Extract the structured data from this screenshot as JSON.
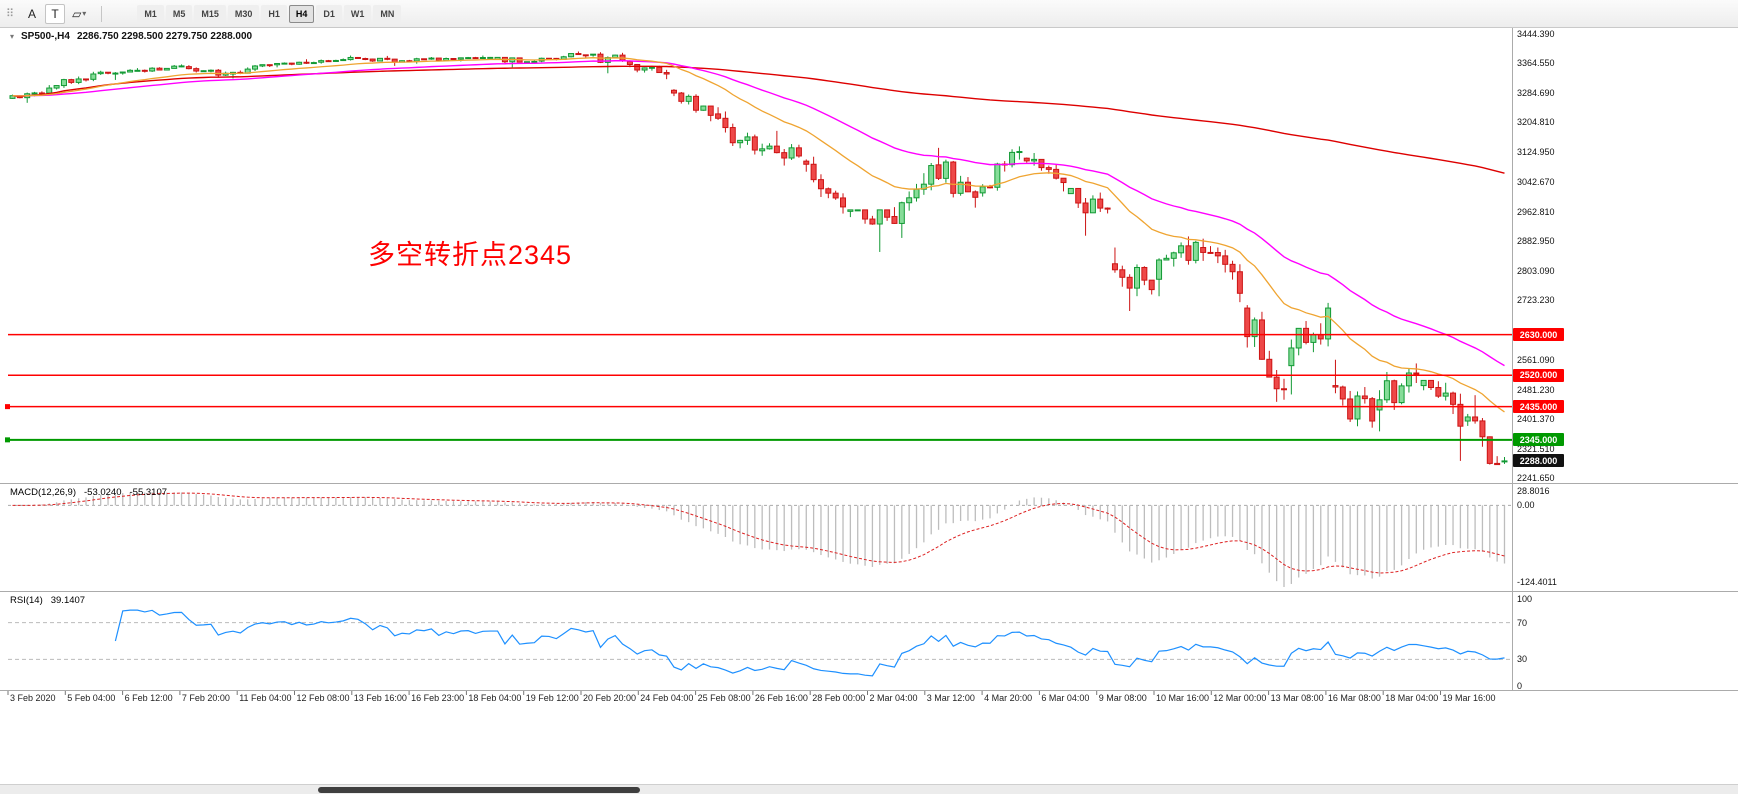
{
  "toolbar": {
    "buttons": [
      {
        "name": "text-annotation",
        "label": "A"
      },
      {
        "name": "text-frame",
        "label": "T"
      },
      {
        "name": "shapes",
        "label": "▱"
      }
    ],
    "timeframes": [
      "M1",
      "M5",
      "M15",
      "M30",
      "H1",
      "H4",
      "D1",
      "W1",
      "MN"
    ],
    "active_timeframe": "H4"
  },
  "chart": {
    "symbol_title": "SP500-,H4",
    "ohlc_text": "2286.750 2298.500 2279.750 2288.000",
    "annotation": "多空转折点2345",
    "annotation_color": "#fe0000",
    "price_axis_ticks": [
      "3444.390",
      "3364.550",
      "3284.690",
      "3204.810",
      "3124.950",
      "3042.670",
      "2962.810",
      "2882.950",
      "2803.090",
      "2723.230",
      "2561.090",
      "2481.230",
      "2401.370",
      "2321.510",
      "2241.650"
    ],
    "levels": [
      {
        "label": "2630.000",
        "value": 2630.0,
        "color": "#ff0000",
        "marker": false
      },
      {
        "label": "2520.000",
        "value": 2520.0,
        "color": "#ff0000",
        "marker": false
      },
      {
        "label": "2435.000",
        "value": 2435.0,
        "color": "#ff0000",
        "marker": true
      },
      {
        "label": "2345.000",
        "value": 2345.0,
        "color": "#009900",
        "marker": true
      }
    ],
    "current_price": {
      "label": "2288.000",
      "value": 2288.0,
      "badge_color": "#111111"
    },
    "colors": {
      "up_line": "#119933",
      "up_fill": "#86dd99",
      "down_line": "#cc1414",
      "down_fill": "#ee4848",
      "ma_fast": "#efA431",
      "ma_mid": "#ff00ff",
      "ma_slow": "#dd0000",
      "macd_hist": "#bdbdbd",
      "macd_signal": "#dd2222",
      "rsi_line": "#1e90ff"
    }
  },
  "chart_data": {
    "type": "candlestick",
    "symbol": "SP500-",
    "period": "H4",
    "bars_per_day": 6,
    "day_format": "[date, open, high, low, close]",
    "days": [
      [
        "3 Feb 2020",
        3270,
        3306,
        3258,
        3298
      ],
      [
        "4 Feb",
        3298,
        3342,
        3294,
        3336
      ],
      [
        "5 Feb",
        3337,
        3352,
        3320,
        3346
      ],
      [
        "6 Feb",
        3346,
        3362,
        3340,
        3358
      ],
      [
        "7 Feb",
        3356,
        3360,
        3328,
        3338
      ],
      [
        "10 Feb",
        3336,
        3362,
        3324,
        3360
      ],
      [
        "11 Feb",
        3361,
        3376,
        3354,
        3367
      ],
      [
        "12 Feb",
        3368,
        3386,
        3364,
        3380
      ],
      [
        "13 Feb",
        3378,
        3385,
        3358,
        3372
      ],
      [
        "14 Feb",
        3372,
        3382,
        3364,
        3378
      ],
      [
        "17 Feb",
        3378,
        3386,
        3370,
        3381
      ],
      [
        "18 Feb",
        3376,
        3381,
        3354,
        3370
      ],
      [
        "19 Feb",
        3371,
        3397,
        3368,
        3390
      ],
      [
        "20 Feb",
        3388,
        3395,
        3338,
        3372
      ],
      [
        "21 Feb",
        3370,
        3373,
        3322,
        3336
      ],
      [
        "24 Feb",
        3292,
        3295,
        3208,
        3224
      ],
      [
        "25 Feb",
        3228,
        3246,
        3118,
        3130
      ],
      [
        "26 Feb",
        3128,
        3182,
        3088,
        3114
      ],
      [
        "27 Feb",
        3100,
        3112,
        2958,
        2976
      ],
      [
        "28 Feb",
        2964,
        2968,
        2854,
        2948
      ],
      [
        "2 Mar",
        2950,
        3095,
        2892,
        3088
      ],
      [
        "3 Mar",
        3090,
        3136,
        2974,
        3002
      ],
      [
        "4 Mar",
        3014,
        3140,
        3004,
        3126
      ],
      [
        "5 Mar",
        3108,
        3122,
        3018,
        3042
      ],
      [
        "6 Mar",
        3012,
        3026,
        2898,
        2970
      ],
      [
        "9 Mar",
        2822,
        2866,
        2694,
        2752
      ],
      [
        "10 Mar",
        2780,
        2896,
        2734,
        2880
      ],
      [
        "11 Mar",
        2866,
        2890,
        2718,
        2742
      ],
      [
        "12 Mar",
        2702,
        2710,
        2448,
        2482
      ],
      [
        "13 Mar",
        2546,
        2716,
        2468,
        2702
      ],
      [
        "16 Mar",
        2492,
        2562,
        2378,
        2396
      ],
      [
        "17 Mar",
        2426,
        2552,
        2368,
        2526
      ],
      [
        "18 Mar",
        2492,
        2506,
        2288,
        2382
      ],
      [
        "19 Mar",
        2396,
        2466,
        2278,
        2288
      ]
    ],
    "last_bar_ohlc": [
      2286.75,
      2298.5,
      2279.75,
      2288.0
    ],
    "moving_averages": [
      {
        "type": "ema",
        "period": 20,
        "color_key": "ma_fast"
      },
      {
        "type": "ema",
        "period": 45,
        "color_key": "ma_mid"
      },
      {
        "type": "sma",
        "period": 200,
        "color_key": "ma_slow"
      }
    ]
  },
  "macd": {
    "label": "MACD(12,26,9)",
    "main_value": "-53.0240",
    "signal_value": "-55.3107",
    "axis_top": "28.8016",
    "axis_zero": "0.00",
    "axis_bottom": "-124.4011"
  },
  "rsi": {
    "label": "RSI(14)",
    "value": "39.1407",
    "axis_labels": [
      "100",
      "70",
      "30",
      "0"
    ],
    "guide_levels": [
      70,
      30
    ]
  },
  "time_axis": {
    "labels": [
      "3 Feb 2020",
      "5 Feb 04:00",
      "6 Feb 12:00",
      "7 Feb 20:00",
      "11 Feb 04:00",
      "12 Feb 08:00",
      "13 Feb 16:00",
      "16 Feb 23:00",
      "18 Feb 04:00",
      "19 Feb 12:00",
      "20 Feb 20:00",
      "24 Feb 04:00",
      "25 Feb 08:00",
      "26 Feb 16:00",
      "28 Feb 00:00",
      "2 Mar 04:00",
      "3 Mar 12:00",
      "4 Mar 20:00",
      "6 Mar 04:00",
      "9 Mar 08:00",
      "10 Mar 16:00",
      "12 Mar 00:00",
      "13 Mar 08:00",
      "16 Mar 08:00",
      "18 Mar 04:00",
      "19 Mar 16:00"
    ]
  }
}
